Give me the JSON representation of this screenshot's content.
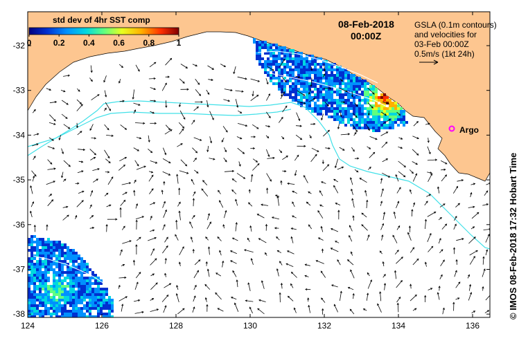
{
  "colorbar": {
    "title": "std dev of 4hr SST comp",
    "ticks": [
      "0",
      "0.2",
      "0.4",
      "0.6",
      "0.8",
      "1"
    ],
    "range": [
      0,
      1
    ],
    "colors": [
      "#000080",
      "#0030d0",
      "#0090ff",
      "#00d8e0",
      "#60ff80",
      "#e8ff20",
      "#ffb000",
      "#ff3000",
      "#800000"
    ]
  },
  "header": {
    "date": "08-Feb-2018",
    "time": "00:00Z"
  },
  "info": {
    "line1": "GSLA (0.1m contours)",
    "line2": "and velocities for",
    "line3": "03-Feb 00:00Z",
    "line4": "0.5m/s (1kt 24h)"
  },
  "credit": "© IMOS 08-Feb-2018 17:32 Hobart Time",
  "argo": {
    "label": "Argo",
    "lon": 135.55,
    "lat": -33.88,
    "color": "#ff00ff"
  },
  "axes": {
    "x_ticks": [
      "124",
      "126",
      "128",
      "130",
      "132",
      "134",
      "136"
    ],
    "y_ticks": [
      "-32",
      "-33",
      "-34",
      "-35",
      "-36",
      "-37",
      "-38"
    ],
    "lon_range": [
      124,
      136.5
    ],
    "lat_range": [
      -38.1,
      -31.3
    ]
  },
  "colors": {
    "land": "#fdc690",
    "contour": "#40e0e8",
    "arrows": "#000000"
  }
}
